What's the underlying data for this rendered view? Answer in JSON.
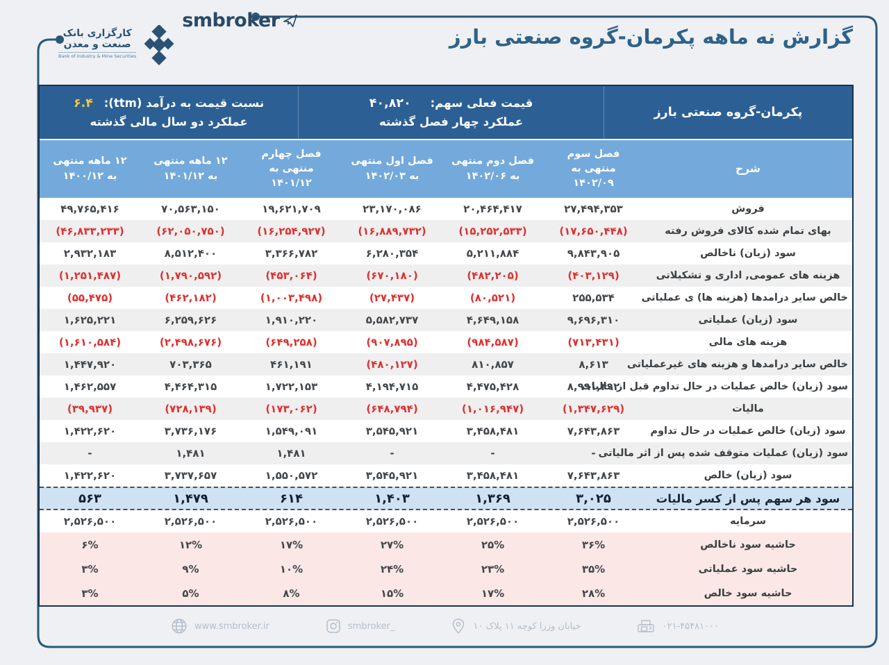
{
  "brand": {
    "bank_fa_line1": "کارگزاری بانک",
    "bank_fa_line2": "صنعت و معدن",
    "bank_en": "Bank of Industry & Mine Securities",
    "wordmark": "smbroker"
  },
  "title": "گزارش نه ماهه پکرمان-گروه صنعتی بارز",
  "infobar": {
    "company": "پکرمان-گروه صنعتی بارز",
    "price_label": "قیمت فعلی سهم:",
    "price_value": "۴۰,۸۲۰",
    "period_quarters_label": "عملکرد چهار فصل گذشته",
    "pe_label": "نسبت  قیمت به درآمد (ttm):",
    "pe_value": "۶.۴",
    "period_years_label": "عملکرد دو سال مالی گذشته"
  },
  "table": {
    "columns": [
      "شرح",
      "فصل سوم منتهی به ۱۴۰۲/۰۹",
      "فصل دوم منتهی به ۱۴۰۲/۰۶",
      "فصل اول منتهی به ۱۴۰۲/۰۳",
      "فصل چهارم منتهی به ۱۴۰۱/۱۲",
      "۱۲ ماهه منتهی به ۱۴۰۱/۱۲",
      "۱۲ ماهه منتهی به ۱۴۰۰/۱۲"
    ],
    "rows": [
      {
        "type": "data",
        "label": "فروش",
        "values": [
          "۲۷,۴۹۴,۳۵۳",
          "۲۰,۴۶۴,۴۱۷",
          "۲۳,۱۷۰,۰۸۶",
          "۱۹,۶۲۱,۷۰۹",
          "۷۰,۵۶۳,۱۵۰",
          "۴۹,۷۶۵,۴۱۶"
        ]
      },
      {
        "type": "data",
        "label": "بهای تمام شده کالای فروش رفته",
        "values": [
          "(۱۷,۶۵۰,۴۴۸)",
          "(۱۵,۲۵۲,۵۳۳)",
          "(۱۶,۸۸۹,۷۳۲)",
          "(۱۶,۲۵۴,۹۲۷)",
          "(۶۲,۰۵۰,۷۵۰)",
          "(۴۶,۸۳۳,۲۳۳)"
        ]
      },
      {
        "type": "data",
        "label": "سود (زیان) ناخالص",
        "values": [
          "۹,۸۴۳,۹۰۵",
          "۵,۲۱۱,۸۸۴",
          "۶,۲۸۰,۳۵۴",
          "۳,۳۶۶,۷۸۲",
          "۸,۵۱۲,۴۰۰",
          "۲,۹۳۲,۱۸۳"
        ]
      },
      {
        "type": "data",
        "label": "هزینه های عمومی, اداری و تشکیلاتی",
        "values": [
          "(۴۰۳,۱۲۹)",
          "(۴۸۲,۲۰۵)",
          "(۶۷۰,۱۸۰)",
          "(۴۵۳,۰۶۴)",
          "(۱,۷۹۰,۵۹۲)",
          "(۱,۲۵۱,۴۸۷)"
        ]
      },
      {
        "type": "data",
        "label": "خالص سایر درامدها (هزینه ها) ی عملیاتی",
        "values": [
          "۲۵۵,۵۳۴",
          "(۸۰,۵۲۱)",
          "(۲۷,۴۳۷)",
          "(۱,۰۰۳,۴۹۸)",
          "(۴۶۲,۱۸۲)",
          "(۵۵,۴۷۵)"
        ]
      },
      {
        "type": "data",
        "label": "سود (زیان) عملیاتی",
        "values": [
          "۹,۶۹۶,۳۱۰",
          "۴,۶۴۹,۱۵۸",
          "۵,۵۸۲,۷۳۷",
          "۱,۹۱۰,۲۲۰",
          "۶,۲۵۹,۶۲۶",
          "۱,۶۲۵,۲۲۱"
        ]
      },
      {
        "type": "data",
        "label": "هزینه های مالی",
        "values": [
          "(۷۱۳,۴۳۱)",
          "(۹۸۴,۵۸۷)",
          "(۹۰۷,۸۹۵)",
          "(۶۴۹,۲۵۸)",
          "(۲,۴۹۸,۶۷۶)",
          "(۱,۶۱۰,۵۸۴)"
        ]
      },
      {
        "type": "data",
        "label": "خالص سایر درامدها و هزینه های غیرعملیاتی",
        "values": [
          "۸,۶۱۳",
          "۸۱۰,۸۵۷",
          "(۴۸۰,۱۲۷)",
          "۴۶۱,۱۹۱",
          "۷۰۳,۳۶۵",
          "۱,۴۴۷,۹۲۰"
        ]
      },
      {
        "type": "data",
        "label": "سود (زیان) خالص عملیات در حال تداوم قبل از مالیات",
        "values": [
          "۸,۹۹۱,۴۹۲",
          "۴,۴۷۵,۴۲۸",
          "۴,۱۹۴,۷۱۵",
          "۱,۷۲۲,۱۵۳",
          "۴,۴۶۴,۳۱۵",
          "۱,۴۶۲,۵۵۷"
        ]
      },
      {
        "type": "data",
        "label": "مالیات",
        "values": [
          "(۱,۳۴۷,۶۲۹)",
          "(۱,۰۱۶,۹۴۷)",
          "(۶۴۸,۷۹۴)",
          "(۱۷۳,۰۶۲)",
          "(۷۲۸,۱۳۹)",
          "(۳۹,۹۳۷)"
        ]
      },
      {
        "type": "data",
        "label": "سود (زیان) خالص عملیات در حال تداوم",
        "values": [
          "۷,۶۴۳,۸۶۳",
          "۳,۴۵۸,۴۸۱",
          "۳,۵۴۵,۹۲۱",
          "۱,۵۴۹,۰۹۱",
          "۳,۷۳۶,۱۷۶",
          "۱,۴۲۲,۶۲۰"
        ]
      },
      {
        "type": "data",
        "label": "سود (زیان) عملیات متوقف شده پس از اثر مالیاتی",
        "values": [
          "-",
          "-",
          "-",
          "۱,۴۸۱",
          "۱,۴۸۱",
          "-"
        ]
      },
      {
        "type": "data",
        "label": "سود (زیان) خالص",
        "values": [
          "۷,۶۴۳,۸۶۳",
          "۳,۴۵۸,۴۸۱",
          "۳,۵۴۵,۹۲۱",
          "۱,۵۵۰,۵۷۲",
          "۳,۷۳۷,۶۵۷",
          "۱,۴۲۲,۶۲۰"
        ]
      },
      {
        "type": "eps",
        "label": "سود هر سهم پس از کسر مالیات",
        "values": [
          "۳,۰۲۵",
          "۱,۳۶۹",
          "۱,۴۰۳",
          "۶۱۴",
          "۱,۴۷۹",
          "۵۶۳"
        ]
      },
      {
        "type": "capital",
        "label": "سرمایه",
        "values": [
          "۲,۵۲۶,۵۰۰",
          "۲,۵۲۶,۵۰۰",
          "۲,۵۲۶,۵۰۰",
          "۲,۵۲۶,۵۰۰",
          "۲,۵۲۶,۵۰۰",
          "۲,۵۲۶,۵۰۰"
        ]
      },
      {
        "type": "margin",
        "label": "حاشیه سود ناخالص",
        "values": [
          "۳۶%",
          "۲۵%",
          "۲۷%",
          "۱۷%",
          "۱۲%",
          "۶%"
        ]
      },
      {
        "type": "margin",
        "label": "حاشیه سود عملیاتی",
        "values": [
          "۳۵%",
          "۲۳%",
          "۲۴%",
          "۱۰%",
          "۹%",
          "۳%"
        ]
      },
      {
        "type": "margin",
        "label": "حاشیه سود خالص",
        "values": [
          "۲۸%",
          "۱۷%",
          "۱۵%",
          "۸%",
          "۵%",
          "۳%"
        ]
      }
    ]
  },
  "footer": {
    "website": "www.smbroker.ir",
    "instagram": "smbroker_",
    "address": "خیابان وزرا کوچه ۱۱ پلاک ۱۰",
    "phone": "۰۲۱-۴۵۴۸۱۰۰۰"
  },
  "colors": {
    "band_blue": "#2c6095",
    "header_blue": "#74a9db",
    "eps_bg": "#cfe2f4",
    "margin_pink": "#fbe8e6",
    "stripe_gray": "#efefef",
    "negative_red": "#e02f2f",
    "title_blue": "#2e6288",
    "accent_yellow": "#f6c544",
    "frame_line": "#2b5878"
  }
}
